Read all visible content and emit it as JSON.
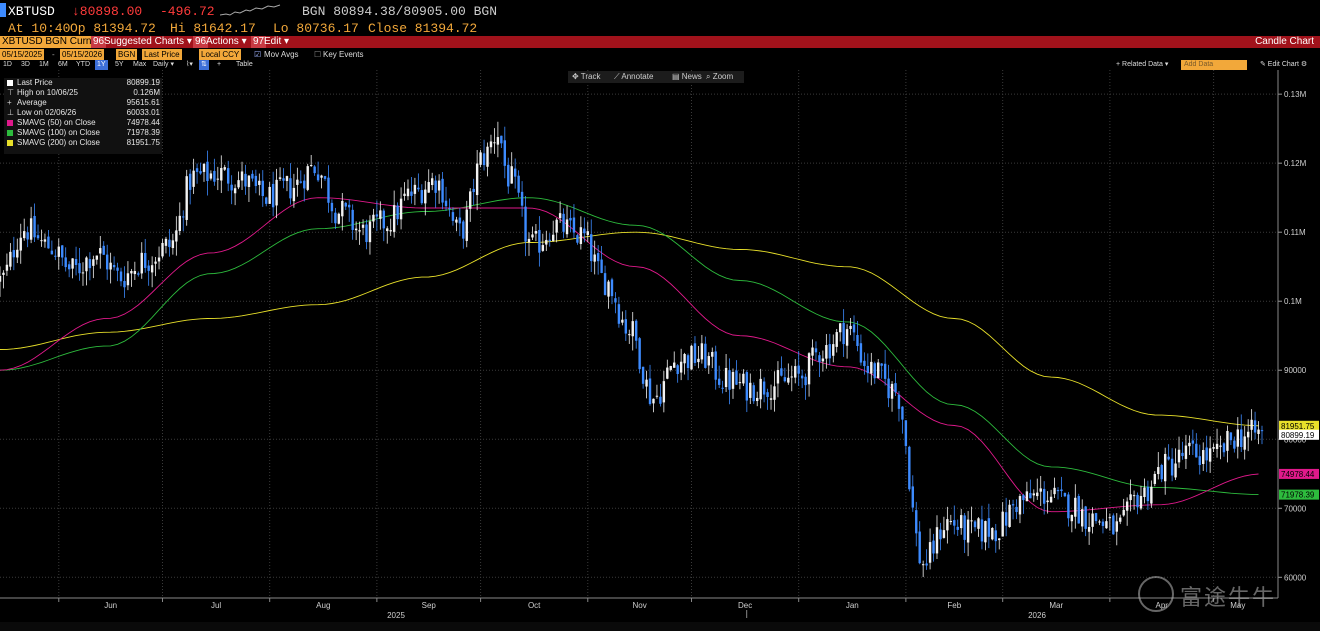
{
  "header": {
    "ticker": "XBTUSD",
    "last": "↓80898.00",
    "change": "-496.72",
    "bid_ask": "BGN 80894.38/80905.00 BGN",
    "time": "At 10:40",
    "open": "Op 81394.72",
    "high": "Hi 81642.17",
    "low": "Lo 80736.17",
    "close": "Close 81394.72"
  },
  "menubar": {
    "security": "XBTUSD BGN Curncy",
    "suggested_num": "96",
    "suggested": "Suggested Charts ▾",
    "actions_num": "96",
    "actions": "Actions ▾",
    "edit_num": "97",
    "edit": "Edit ▾",
    "chart_type": "Candle Chart"
  },
  "params": {
    "start_date": "05/15/2025",
    "end_date": "05/15/2026",
    "source": "BGN",
    "field": "Last Price",
    "currency": "Local CCY",
    "mov_avgs": "Mov Avgs",
    "key_events": "Key Events"
  },
  "ranges": {
    "items": [
      "1D",
      "3D",
      "1M",
      "6M",
      "YTD",
      "1Y",
      "5Y",
      "Max",
      "Daily ▾"
    ],
    "selected": "1Y",
    "table": "Table",
    "related": "+ Related Data ▾",
    "add_data": "Add Data",
    "edit_chart": "✎ Edit Chart ⚙"
  },
  "toolbar": {
    "track": "✥ Track",
    "annotate": "⟋ Annotate",
    "news": "▤ News",
    "zoom": "⌕ Zoom"
  },
  "legend": [
    {
      "label": "Last Price",
      "value": "80899.19",
      "color": "#ffffff"
    },
    {
      "label": "High on 10/06/25",
      "value": "0.126M",
      "color": ""
    },
    {
      "label": "Average",
      "value": "95615.61",
      "color": ""
    },
    {
      "label": "Low on 02/06/26",
      "value": "60033.01",
      "color": ""
    },
    {
      "label": "SMAVG (50)  on Close",
      "value": "74978.44",
      "color": "#e0198b"
    },
    {
      "label": "SMAVG (100)  on Close",
      "value": "71978.39",
      "color": "#2dbb3d"
    },
    {
      "label": "SMAVG (200)  on Close",
      "value": "81951.75",
      "color": "#e8e02a"
    }
  ],
  "watermark": "富途牛牛",
  "chart_data": {
    "type": "candlestick",
    "y_ticks": [
      "60000",
      "70000",
      "80000",
      "90000",
      "0.1M",
      "0.11M",
      "0.12M",
      "0.13M"
    ],
    "y_tick_values": [
      60000,
      70000,
      80000,
      90000,
      100000,
      110000,
      120000,
      130000
    ],
    "ylim": [
      57000,
      133500
    ],
    "months": [
      "Jun",
      "Jul",
      "Aug",
      "Sep",
      "Oct",
      "Nov",
      "Dec",
      "Jan",
      "Feb",
      "Mar",
      "Apr",
      "May"
    ],
    "years": [
      "2025",
      "2026"
    ],
    "close_anchor_dates": [
      "2025-05-15",
      "2025-05-22",
      "2025-05-29",
      "2025-06-05",
      "2025-06-12",
      "2025-06-19",
      "2025-06-26",
      "2025-07-03",
      "2025-07-10",
      "2025-07-17",
      "2025-07-24",
      "2025-07-31",
      "2025-08-07",
      "2025-08-14",
      "2025-08-21",
      "2025-08-28",
      "2025-09-04",
      "2025-09-11",
      "2025-09-18",
      "2025-09-25",
      "2025-10-02",
      "2025-10-06",
      "2025-10-09",
      "2025-10-16",
      "2025-10-23",
      "2025-10-30",
      "2025-11-06",
      "2025-11-13",
      "2025-11-20",
      "2025-11-27",
      "2025-12-04",
      "2025-12-11",
      "2025-12-18",
      "2025-12-25",
      "2026-01-01",
      "2026-01-08",
      "2026-01-15",
      "2026-01-22",
      "2026-01-29",
      "2026-02-06",
      "2026-02-13",
      "2026-02-20",
      "2026-02-27",
      "2026-03-06",
      "2026-03-13",
      "2026-03-20",
      "2026-03-27",
      "2026-04-03",
      "2026-04-10",
      "2026-04-17",
      "2026-04-24",
      "2026-05-01",
      "2026-05-08",
      "2026-05-15"
    ],
    "close_anchor_values": [
      103000,
      110500,
      108000,
      104500,
      107000,
      103500,
      106000,
      108000,
      118000,
      118500,
      117500,
      115000,
      116500,
      119500,
      113000,
      110000,
      111500,
      115500,
      117500,
      110000,
      121000,
      124500,
      118000,
      108000,
      111000,
      109500,
      103000,
      96000,
      86000,
      91500,
      92000,
      88500,
      87500,
      88000,
      89000,
      93000,
      96000,
      90000,
      87000,
      62000,
      68000,
      66500,
      67000,
      71000,
      72000,
      70500,
      68500,
      67000,
      72000,
      76000,
      78000,
      77500,
      80500,
      80899
    ],
    "sma50": {
      "dates": [
        "2025-05-15",
        "2025-06-15",
        "2025-07-15",
        "2025-08-15",
        "2025-09-15",
        "2025-10-15",
        "2025-11-15",
        "2025-12-15",
        "2026-01-15",
        "2026-02-15",
        "2026-03-15",
        "2026-04-15",
        "2026-05-15"
      ],
      "values": [
        90000,
        97500,
        107000,
        115000,
        113500,
        113500,
        105000,
        95000,
        90500,
        82000,
        69500,
        70500,
        74978
      ]
    },
    "sma100": {
      "dates": [
        "2025-05-15",
        "2025-06-15",
        "2025-07-15",
        "2025-08-15",
        "2025-09-15",
        "2025-10-15",
        "2025-11-15",
        "2025-12-15",
        "2026-01-15",
        "2026-02-15",
        "2026-03-15",
        "2026-04-15",
        "2026-05-15"
      ],
      "values": [
        90000,
        93500,
        104000,
        110500,
        113000,
        115000,
        111000,
        103000,
        97000,
        85000,
        76000,
        73000,
        71978
      ]
    },
    "sma200": {
      "dates": [
        "2025-05-15",
        "2025-06-15",
        "2025-07-15",
        "2025-08-15",
        "2025-09-15",
        "2025-10-15",
        "2025-11-15",
        "2025-12-15",
        "2026-01-15",
        "2026-02-15",
        "2026-03-15",
        "2026-04-15",
        "2026-05-15"
      ],
      "values": [
        93000,
        95500,
        97500,
        99500,
        103500,
        108500,
        110000,
        107500,
        105000,
        97500,
        89000,
        83500,
        81951
      ]
    },
    "right_tags": [
      {
        "value": 81951.75,
        "label": "81951.75",
        "color": "#e8e02a"
      },
      {
        "value": 80899.19,
        "label": "80899.19",
        "color": "#ffffff"
      },
      {
        "value": 74978.44,
        "label": "74978.44",
        "color": "#e0198b"
      },
      {
        "value": 71978.39,
        "label": "71978.39",
        "color": "#2dbb3d"
      }
    ]
  }
}
